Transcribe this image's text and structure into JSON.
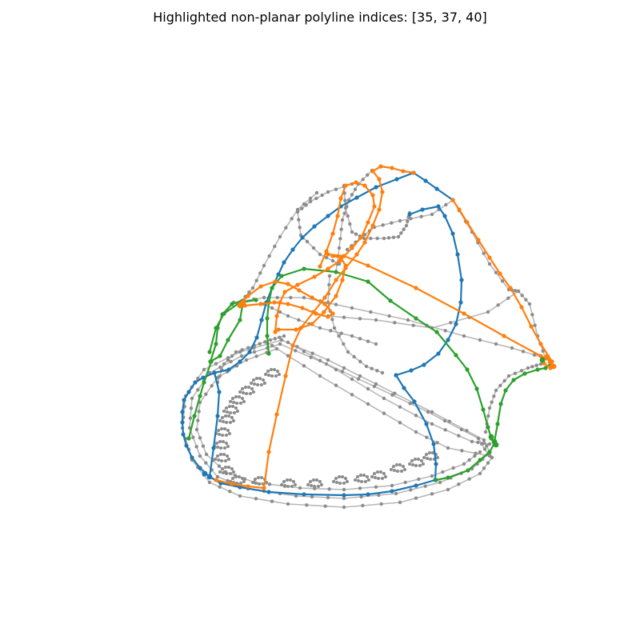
{
  "title": "Highlighted non-planar polyline indices: [35, 37, 40]",
  "colors": {
    "background": "#ffffff",
    "context": "#9a9a9a",
    "series": [
      "#1f77b4",
      "#ff7f0e",
      "#2ca02c"
    ]
  }
}
